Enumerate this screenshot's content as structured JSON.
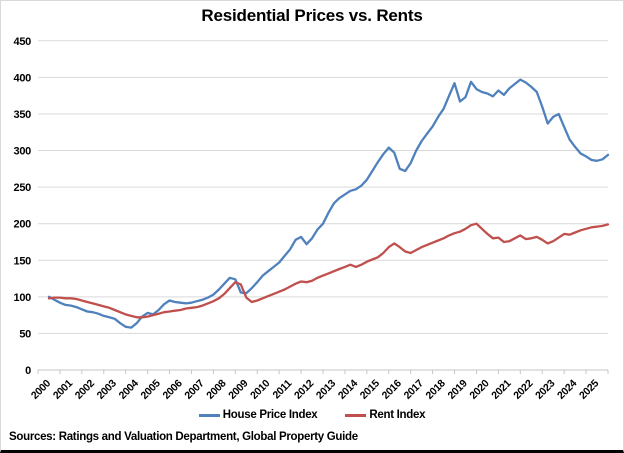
{
  "title": "Residential Prices vs. Rents",
  "source_note": "Sources: Ratings and Valuation Department, Global Property Guide",
  "colors": {
    "house_price_line": "#4f81bd",
    "rent_line": "#c0504d",
    "gridline": "#d9d9d9",
    "axis": "#c6c6c6",
    "text": "#000000",
    "background": "#ffffff"
  },
  "legend": {
    "items": [
      {
        "label": "House Price Index",
        "color": "#4f81bd"
      },
      {
        "label": "Rent Index",
        "color": "#c0504d"
      }
    ]
  },
  "chart_data": {
    "type": "line",
    "title": "Residential Prices vs. Rents",
    "xlabel": "",
    "ylabel": "",
    "ylim": [
      0,
      450
    ],
    "ytick_step": 50,
    "ytick_labels": [
      "0",
      "50",
      "100",
      "150",
      "200",
      "250",
      "300",
      "350",
      "400",
      "450"
    ],
    "grid": "horizontal",
    "legend_position": "bottom",
    "categories": [
      "2000",
      "2001",
      "2002",
      "2003",
      "2004",
      "2005",
      "2006",
      "2007",
      "2008",
      "2009",
      "2010",
      "2011",
      "2012",
      "2013",
      "2014",
      "2015",
      "2016",
      "2017",
      "2018",
      "2019",
      "2020",
      "2021",
      "2022",
      "2023",
      "2024",
      "2025"
    ],
    "x_start": 2000,
    "x_step": 0.25,
    "x_note": "quarterly points from 2000 Q1 to 2025 Q3, values estimated from plot",
    "series": [
      {
        "name": "House Price Index",
        "color": "#4f81bd",
        "values": [
          100,
          96,
          92,
          89,
          88,
          86,
          83,
          80,
          79,
          77,
          74,
          72,
          70,
          64,
          59,
          58,
          64,
          73,
          78,
          76,
          82,
          90,
          95,
          93,
          92,
          91,
          92,
          94,
          96,
          99,
          103,
          110,
          118,
          126,
          124,
          106,
          105,
          112,
          120,
          129,
          135,
          141,
          147,
          156,
          165,
          178,
          182,
          172,
          180,
          192,
          200,
          215,
          228,
          235,
          240,
          245,
          247,
          252,
          260,
          272,
          284,
          295,
          304,
          297,
          275,
          272,
          283,
          300,
          313,
          323,
          333,
          346,
          357,
          375,
          392,
          367,
          373,
          394,
          384,
          380,
          378,
          374,
          382,
          376,
          385,
          391,
          397,
          393,
          387,
          380,
          360,
          337,
          346,
          350,
          332,
          315,
          305,
          296,
          292,
          287,
          286,
          288,
          294
        ]
      },
      {
        "name": "Rent Index",
        "color": "#c0504d",
        "values": [
          98,
          99,
          99,
          98,
          98,
          97,
          95,
          93,
          91,
          89,
          87,
          85,
          82,
          79,
          76,
          74,
          72,
          72,
          73,
          75,
          77,
          79,
          80,
          81,
          82,
          84,
          85,
          86,
          88,
          91,
          94,
          98,
          104,
          112,
          120,
          117,
          99,
          93,
          95,
          98,
          101,
          104,
          107,
          110,
          114,
          118,
          121,
          120,
          122,
          126,
          129,
          132,
          135,
          138,
          141,
          144,
          141,
          144,
          148,
          151,
          154,
          160,
          168,
          173,
          168,
          162,
          160,
          164,
          168,
          171,
          174,
          177,
          180,
          184,
          187,
          189,
          193,
          198,
          200,
          193,
          186,
          180,
          181,
          175,
          176,
          180,
          184,
          179,
          180,
          182,
          178,
          173,
          176,
          181,
          186,
          185,
          188,
          191,
          193,
          195,
          196,
          197,
          199
        ]
      }
    ]
  }
}
